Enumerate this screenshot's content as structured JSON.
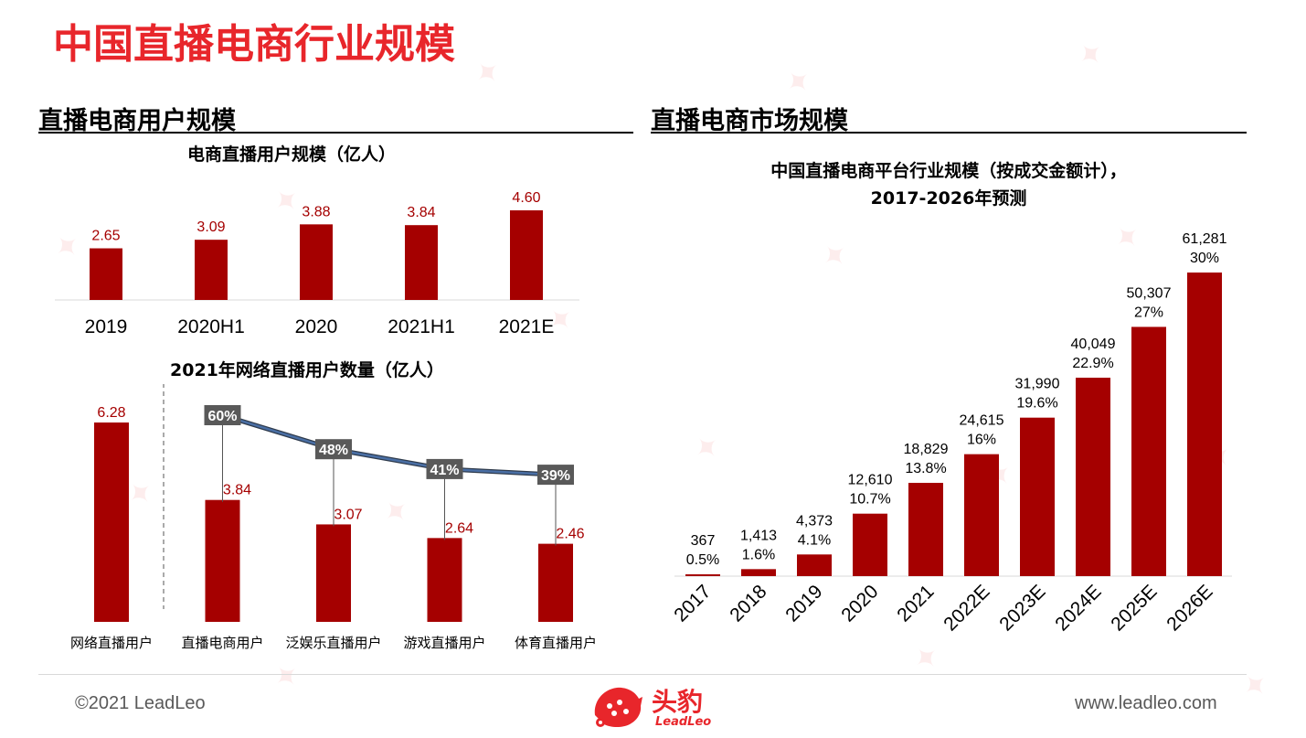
{
  "page": {
    "title": "中国直播电商行业规模",
    "left_section": "直播电商用户规模",
    "right_section": "直播电商市场规模",
    "footer_left": "©2021 LeadLeo",
    "footer_right": "www.leadleo.com",
    "logo_cn": "头豹",
    "logo_en": "LeadLeo"
  },
  "colors": {
    "bar": "#a50000",
    "title": "#e8262b",
    "line": "#4a6fa5",
    "badge": "#595959"
  },
  "chart_data": [
    {
      "type": "bar",
      "title": "电商直播用户规模（亿人）",
      "categories": [
        "2019",
        "2020H1",
        "2020",
        "2021H1",
        "2021E"
      ],
      "values": [
        2.65,
        3.09,
        3.88,
        3.84,
        4.6
      ],
      "value_labels": [
        "2.65",
        "3.09",
        "3.88",
        "3.84",
        "4.60"
      ]
    },
    {
      "type": "bar",
      "title": "2021年网络直播用户数量（亿人）",
      "categories": [
        "网络直播用户",
        "直播电商用户",
        "泛娱乐直播用户",
        "游戏直播用户",
        "体育直播用户"
      ],
      "values": [
        6.28,
        3.84,
        3.07,
        2.64,
        2.46
      ],
      "value_labels": [
        "6.28",
        "3.84",
        "3.07",
        "2.64",
        "2.46"
      ],
      "penetration": {
        "type": "line",
        "categories": [
          "直播电商用户",
          "泛娱乐直播用户",
          "游戏直播用户",
          "体育直播用户"
        ],
        "values": [
          60,
          48,
          41,
          39
        ],
        "labels": [
          "60%",
          "48%",
          "41%",
          "39%"
        ]
      }
    },
    {
      "type": "bar",
      "title_line1": "中国直播电商平台行业规模（按成交金额计），",
      "title_line2": "2017-2026年预测",
      "categories": [
        "2017",
        "2018",
        "2019",
        "2020",
        "2021",
        "2022E",
        "2023E",
        "2024E",
        "2025E",
        "2026E"
      ],
      "values": [
        367,
        1413,
        4373,
        12610,
        18829,
        24615,
        31990,
        40049,
        50307,
        61281
      ],
      "value_labels": [
        "367",
        "1,413",
        "4,373",
        "12,610",
        "18,829",
        "24,615",
        "31,990",
        "40,049",
        "50,307",
        "61,281"
      ],
      "share_labels": [
        "0.5%",
        "1.6%",
        "4.1%",
        "10.7%",
        "13.8%",
        "16%",
        "19.6%",
        "22.9%",
        "27%",
        "30%"
      ]
    }
  ]
}
